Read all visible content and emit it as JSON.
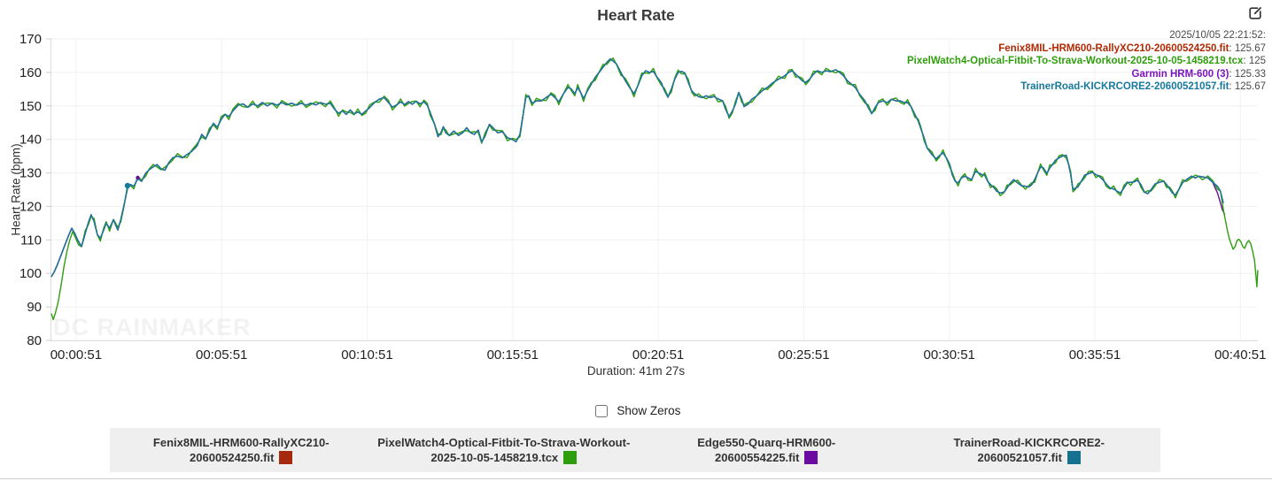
{
  "header": {
    "title": "Heart Rate"
  },
  "tooltip": {
    "timestamp": "2025/10/05 22:21:52:",
    "rows": [
      {
        "name": "Fenix8MIL-HRM600-RallyXC210-20600524250.fit",
        "value": "125.67",
        "color": "#b22a04"
      },
      {
        "name": "PixelWatch4-Optical-Fitbit-To-Strava-Workout-2025-10-05-1458219.tcx",
        "value": "125",
        "color": "#2e9e0c"
      },
      {
        "name": "Garmin HRM-600 (3)",
        "value": "125.33",
        "color": "#7d13c0"
      },
      {
        "name": "TrainerRoad-KICKRCORE2-20600521057.fit",
        "value": "125.67",
        "color": "#17799e"
      }
    ]
  },
  "controls": {
    "show_zeros_label": "Show Zeros",
    "show_zeros_checked": false
  },
  "legend": {
    "items": [
      {
        "label_line1": "Fenix8MIL-HRM600-RallyXC210-",
        "label_line2": "20600524250.fit",
        "color": "#a52a0d"
      },
      {
        "label_line1": "PixelWatch4-Optical-Fitbit-To-Strava-Workout-",
        "label_line2": "2025-10-05-1458219.tcx",
        "color": "#2f9e0e"
      },
      {
        "label_line1": "Edge550-Quarq-HRM600-",
        "label_line2": "20600554225.fit",
        "color": "#6c0ba0"
      },
      {
        "label_line1": "TrainerRoad-KICKRCORE2-",
        "label_line2": "20600521057.fit",
        "color": "#15718f"
      }
    ]
  },
  "watermark": "DC RAINMAKER",
  "chart_data": {
    "type": "line",
    "title": "Heart Rate",
    "ylabel": "Heart Rate (bpm)",
    "xlabel": "Duration: 41m 27s",
    "ylim": [
      80,
      170
    ],
    "yticks": [
      80,
      90,
      100,
      110,
      120,
      130,
      140,
      150,
      160,
      170
    ],
    "total_seconds": 2487,
    "xticks": [
      {
        "label": "00:00:51",
        "t": 51
      },
      {
        "label": "00:05:51",
        "t": 351
      },
      {
        "label": "00:10:51",
        "t": 651
      },
      {
        "label": "00:15:51",
        "t": 951
      },
      {
        "label": "00:20:51",
        "t": 1251
      },
      {
        "label": "00:25:51",
        "t": 1551
      },
      {
        "label": "00:30:51",
        "t": 1851
      },
      {
        "label": "00:35:51",
        "t": 2151
      },
      {
        "label": "00:40:51",
        "t": 2451
      }
    ],
    "series": [
      {
        "name": "Fenix8MIL-HRM600-RallyXC210-20600524250.fit",
        "color": "#a8290b",
        "source": "hr_base"
      },
      {
        "name": "Edge550-Quarq-HRM600-20600554225.fit",
        "color": "#6a0c9e",
        "source": "hr_base+purple_end"
      },
      {
        "name": "PixelWatch4-Optical-Fitbit-To-Strava-Workout-2025-10-05-1458219.tcx",
        "color": "#2f9e0e",
        "source": "green_start+hr_base+green_end"
      },
      {
        "name": "TrainerRoad-KICKRCORE2-20600521057.fit",
        "color": "#17799e",
        "source": "hr_base"
      }
    ],
    "green_jitter": 0.9,
    "hr_base": [
      [
        0,
        99
      ],
      [
        6,
        100.5
      ],
      [
        12,
        102.5
      ],
      [
        20,
        105.5
      ],
      [
        28,
        108.5
      ],
      [
        36,
        111.5
      ],
      [
        42,
        113.5
      ],
      [
        48,
        112
      ],
      [
        54,
        110
      ],
      [
        62,
        108
      ],
      [
        70,
        112
      ],
      [
        76,
        115
      ],
      [
        82,
        117.5
      ],
      [
        88,
        115.5
      ],
      [
        95,
        111.5
      ],
      [
        101,
        110.5
      ],
      [
        108,
        113
      ],
      [
        113,
        115
      ],
      [
        120,
        113.5
      ],
      [
        128,
        116
      ],
      [
        137,
        113
      ],
      [
        143,
        116
      ],
      [
        150,
        120.5
      ],
      [
        157,
        125.5
      ],
      [
        163,
        126.5
      ],
      [
        170,
        126
      ],
      [
        178,
        128.3
      ],
      [
        186,
        127.5
      ],
      [
        194,
        129.8
      ],
      [
        202,
        131
      ],
      [
        210,
        131.8
      ],
      [
        218,
        132.5
      ],
      [
        226,
        131.2
      ],
      [
        234,
        130.8
      ],
      [
        242,
        133
      ],
      [
        250,
        134.5
      ],
      [
        260,
        135
      ],
      [
        270,
        134.5
      ],
      [
        280,
        135.5
      ],
      [
        290,
        136.5
      ],
      [
        300,
        138
      ],
      [
        310,
        141.5
      ],
      [
        318,
        140.2
      ],
      [
        326,
        142.5
      ],
      [
        334,
        144.8
      ],
      [
        342,
        143.6
      ],
      [
        350,
        146
      ],
      [
        358,
        147.5
      ],
      [
        366,
        146.8
      ],
      [
        374,
        148.5
      ],
      [
        385,
        150.2
      ],
      [
        395,
        150.6
      ],
      [
        405,
        149.6
      ],
      [
        415,
        150.6
      ],
      [
        425,
        150
      ],
      [
        435,
        151
      ],
      [
        445,
        150
      ],
      [
        455,
        150.8
      ],
      [
        465,
        150.2
      ],
      [
        475,
        151
      ],
      [
        485,
        150.3
      ],
      [
        495,
        150.8
      ],
      [
        505,
        150.2
      ],
      [
        515,
        150.8
      ],
      [
        525,
        150.2
      ],
      [
        535,
        150.8
      ],
      [
        545,
        150.3
      ],
      [
        555,
        151
      ],
      [
        565,
        150.5
      ],
      [
        575,
        150.8
      ],
      [
        584,
        149
      ],
      [
        592,
        147.8
      ],
      [
        600,
        148.5
      ],
      [
        608,
        147.5
      ],
      [
        616,
        148.8
      ],
      [
        624,
        147.6
      ],
      [
        632,
        148.2
      ],
      [
        640,
        147.5
      ],
      [
        648,
        148.5
      ],
      [
        656,
        149.5
      ],
      [
        666,
        151
      ],
      [
        676,
        152
      ],
      [
        686,
        152.5
      ],
      [
        695,
        151
      ],
      [
        703,
        149.6
      ],
      [
        712,
        150.3
      ],
      [
        720,
        151.2
      ],
      [
        728,
        150.4
      ],
      [
        736,
        151.3
      ],
      [
        744,
        150.5
      ],
      [
        752,
        151.4
      ],
      [
        760,
        150.6
      ],
      [
        768,
        151.2
      ],
      [
        775,
        150.2
      ],
      [
        781,
        148
      ],
      [
        790,
        144.5
      ],
      [
        797,
        140.8
      ],
      [
        803,
        142
      ],
      [
        808,
        143.8
      ],
      [
        813,
        142
      ],
      [
        820,
        141.2
      ],
      [
        830,
        142.5
      ],
      [
        839,
        141.2
      ],
      [
        848,
        142
      ],
      [
        856,
        143.5
      ],
      [
        864,
        142
      ],
      [
        872,
        141.5
      ],
      [
        880,
        142.8
      ],
      [
        887,
        139.2
      ],
      [
        894,
        141
      ],
      [
        903,
        144.5
      ],
      [
        910,
        143.5
      ],
      [
        920,
        142
      ],
      [
        930,
        142.3
      ],
      [
        940,
        140.5
      ],
      [
        950,
        140
      ],
      [
        958,
        139.3
      ],
      [
        966,
        141.5
      ],
      [
        972,
        147
      ],
      [
        978,
        152.5
      ],
      [
        984,
        153
      ],
      [
        991,
        150.8
      ],
      [
        1000,
        151.5
      ],
      [
        1010,
        151.5
      ],
      [
        1020,
        152.5
      ],
      [
        1030,
        153.5
      ],
      [
        1038,
        152.5
      ],
      [
        1046,
        151.2
      ],
      [
        1055,
        153.5
      ],
      [
        1065,
        155.5
      ],
      [
        1072,
        155
      ],
      [
        1079,
        153.6
      ],
      [
        1085,
        155.5
      ],
      [
        1091,
        154
      ],
      [
        1097,
        152.2
      ],
      [
        1105,
        154.5
      ],
      [
        1113,
        156.5
      ],
      [
        1121,
        158.5
      ],
      [
        1129,
        160
      ],
      [
        1137,
        161.5
      ],
      [
        1145,
        163
      ],
      [
        1152,
        164
      ],
      [
        1158,
        163.4
      ],
      [
        1165,
        162.5
      ],
      [
        1174,
        160
      ],
      [
        1183,
        157.6
      ],
      [
        1192,
        155.5
      ],
      [
        1201,
        153.6
      ],
      [
        1209,
        156
      ],
      [
        1217,
        159
      ],
      [
        1225,
        160.5
      ],
      [
        1233,
        160
      ],
      [
        1241,
        160.3
      ],
      [
        1249,
        158.5
      ],
      [
        1257,
        157
      ],
      [
        1264,
        154.5
      ],
      [
        1271,
        152.6
      ],
      [
        1278,
        155
      ],
      [
        1285,
        158
      ],
      [
        1292,
        160
      ],
      [
        1299,
        160.3
      ],
      [
        1306,
        159.8
      ],
      [
        1313,
        157
      ],
      [
        1320,
        154.5
      ],
      [
        1326,
        153.6
      ],
      [
        1334,
        152.8
      ],
      [
        1342,
        152.5
      ],
      [
        1350,
        153
      ],
      [
        1358,
        152.5
      ],
      [
        1366,
        152.8
      ],
      [
        1374,
        152.1
      ],
      [
        1384,
        151.5
      ],
      [
        1390,
        149
      ],
      [
        1397,
        146.8
      ],
      [
        1404,
        148.5
      ],
      [
        1410,
        150.5
      ],
      [
        1417,
        154
      ],
      [
        1423,
        152
      ],
      [
        1428,
        149.8
      ],
      [
        1436,
        150.5
      ],
      [
        1444,
        152
      ],
      [
        1454,
        153
      ],
      [
        1465,
        154.5
      ],
      [
        1476,
        155.5
      ],
      [
        1488,
        157
      ],
      [
        1499,
        158
      ],
      [
        1506,
        158.5
      ],
      [
        1512,
        159
      ],
      [
        1520,
        160
      ],
      [
        1527,
        160.5
      ],
      [
        1534,
        159.5
      ],
      [
        1541,
        158.5
      ],
      [
        1548,
        157.5
      ],
      [
        1555,
        157
      ],
      [
        1563,
        158
      ],
      [
        1571,
        159.5
      ],
      [
        1579,
        160.5
      ],
      [
        1588,
        160
      ],
      [
        1597,
        160.5
      ],
      [
        1606,
        160.2
      ],
      [
        1617,
        160.8
      ],
      [
        1625,
        160
      ],
      [
        1633,
        159
      ],
      [
        1641,
        157.5
      ],
      [
        1649,
        156.5
      ],
      [
        1657,
        155.5
      ],
      [
        1666,
        153.5
      ],
      [
        1677,
        151.5
      ],
      [
        1684,
        149.5
      ],
      [
        1691,
        147.7
      ],
      [
        1698,
        149.5
      ],
      [
        1705,
        151
      ],
      [
        1714,
        151.5
      ],
      [
        1723,
        151
      ],
      [
        1732,
        152
      ],
      [
        1741,
        151.5
      ],
      [
        1750,
        151.5
      ],
      [
        1758,
        151
      ],
      [
        1765,
        151
      ],
      [
        1772,
        149.8
      ],
      [
        1780,
        147.5
      ],
      [
        1787,
        145.5
      ],
      [
        1793,
        143
      ],
      [
        1799,
        140.5
      ],
      [
        1805,
        137.5
      ],
      [
        1815,
        135.5
      ],
      [
        1824,
        134.2
      ],
      [
        1831,
        135.2
      ],
      [
        1838,
        136
      ],
      [
        1845,
        134.5
      ],
      [
        1852,
        132.5
      ],
      [
        1857,
        129.5
      ],
      [
        1863,
        127.5
      ],
      [
        1869,
        127
      ],
      [
        1876,
        128.5
      ],
      [
        1883,
        129
      ],
      [
        1890,
        128.5
      ],
      [
        1897,
        128
      ],
      [
        1905,
        130.5
      ],
      [
        1912,
        130
      ],
      [
        1918,
        129.5
      ],
      [
        1924,
        129.3
      ],
      [
        1930,
        127.5
      ],
      [
        1936,
        126.5
      ],
      [
        1942,
        125.8
      ],
      [
        1949,
        124.5
      ],
      [
        1956,
        124
      ],
      [
        1964,
        124.3
      ],
      [
        1970,
        125.5
      ],
      [
        1976,
        126.8
      ],
      [
        1984,
        128
      ],
      [
        1992,
        127
      ],
      [
        2000,
        126.2
      ],
      [
        2008,
        126
      ],
      [
        2015,
        125.8
      ],
      [
        2021,
        126.5
      ],
      [
        2027,
        128
      ],
      [
        2033,
        130
      ],
      [
        2039,
        131.8
      ],
      [
        2045,
        131.5
      ],
      [
        2052,
        129.8
      ],
      [
        2058,
        131.5
      ],
      [
        2064,
        132.5
      ],
      [
        2070,
        133.8
      ],
      [
        2077,
        134.5
      ],
      [
        2084,
        135
      ],
      [
        2092,
        135.3
      ],
      [
        2097,
        132.5
      ],
      [
        2101,
        129.8
      ],
      [
        2106,
        125
      ],
      [
        2111,
        125.5
      ],
      [
        2116,
        125.8
      ],
      [
        2123,
        127.5
      ],
      [
        2130,
        129.3
      ],
      [
        2138,
        129.8
      ],
      [
        2146,
        130.2
      ],
      [
        2153,
        129.5
      ],
      [
        2160,
        129
      ],
      [
        2167,
        128
      ],
      [
        2174,
        126.8
      ],
      [
        2182,
        125.5
      ],
      [
        2190,
        125.2
      ],
      [
        2197,
        124.5
      ],
      [
        2204,
        124
      ],
      [
        2211,
        125.5
      ],
      [
        2218,
        127.1
      ],
      [
        2225,
        127.2
      ],
      [
        2232,
        127.3
      ],
      [
        2239,
        127.8
      ],
      [
        2246,
        126.5
      ],
      [
        2253,
        124.3
      ],
      [
        2260,
        123.8
      ],
      [
        2267,
        125
      ],
      [
        2275,
        126.7
      ],
      [
        2284,
        127.2
      ],
      [
        2293,
        127.5
      ],
      [
        2299,
        126.5
      ],
      [
        2305,
        125.3
      ],
      [
        2311,
        124
      ],
      [
        2317,
        123.4
      ],
      [
        2324,
        125
      ],
      [
        2332,
        127.1
      ],
      [
        2340,
        128
      ],
      [
        2350,
        129
      ],
      [
        2358,
        128.5
      ],
      [
        2365,
        129
      ],
      [
        2373,
        128.8
      ],
      [
        2384,
        128.5
      ],
      [
        2394,
        127.2
      ],
      [
        2404,
        126
      ],
      [
        2410,
        124.5
      ],
      [
        2416,
        121
      ]
    ],
    "green_start": [
      [
        0,
        88
      ],
      [
        4,
        86.2
      ],
      [
        9,
        88.5
      ],
      [
        14,
        91.5
      ],
      [
        20,
        96.5
      ],
      [
        26,
        102
      ],
      [
        32,
        106.5
      ],
      [
        38,
        110
      ],
      [
        44,
        112.5
      ],
      [
        50,
        110.5
      ],
      [
        56,
        108.5
      ]
    ],
    "green_end": [
      [
        2416,
        119
      ],
      [
        2420,
        116
      ],
      [
        2424,
        113
      ],
      [
        2428,
        110.5
      ],
      [
        2432,
        108.8
      ],
      [
        2436,
        107.2
      ],
      [
        2440,
        108
      ],
      [
        2444,
        109.8
      ],
      [
        2448,
        110.2
      ],
      [
        2452,
        109.5
      ],
      [
        2456,
        108
      ],
      [
        2460,
        107.5
      ],
      [
        2464,
        109
      ],
      [
        2468,
        109.8
      ],
      [
        2472,
        109
      ],
      [
        2476,
        106.8
      ],
      [
        2480,
        104
      ],
      [
        2483,
        99.5
      ],
      [
        2485,
        96
      ],
      [
        2487,
        101
      ]
    ],
    "purple_end": [
      [
        2399,
        125.5
      ],
      [
        2404,
        124
      ],
      [
        2409,
        121.5
      ],
      [
        2414,
        119
      ],
      [
        2419,
        117.5
      ]
    ],
    "markers": [
      {
        "t": 157,
        "bpm": 126.2,
        "color": "#17799e",
        "r": 3.2
      },
      {
        "t": 178,
        "bpm": 128.6,
        "color": "#6a0c9e",
        "r": 2.2
      }
    ]
  }
}
